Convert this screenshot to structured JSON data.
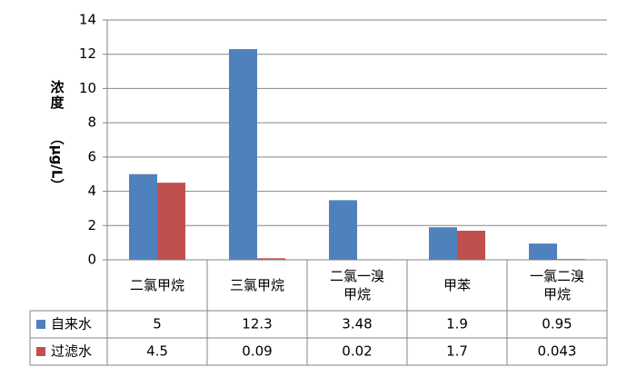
{
  "chart_data": {
    "type": "bar",
    "y_label": "浓度",
    "y_unit": "（μg/L）",
    "categories": [
      "二氯甲烷",
      "三氯甲烷",
      "二氯一溴甲烷",
      "甲苯",
      "一氯二溴甲烷"
    ],
    "series": [
      {
        "name": "自来水",
        "color": "#4f81bd",
        "values": [
          5,
          12.3,
          3.48,
          1.9,
          0.95
        ]
      },
      {
        "name": "过滤水",
        "color": "#c0504d",
        "values": [
          4.5,
          0.09,
          0.02,
          1.7,
          0.043
        ]
      }
    ],
    "ylim": [
      0,
      14
    ],
    "yticks": [
      0,
      2,
      4,
      6,
      8,
      10,
      12,
      14
    ],
    "grid": true,
    "data_table": true
  }
}
